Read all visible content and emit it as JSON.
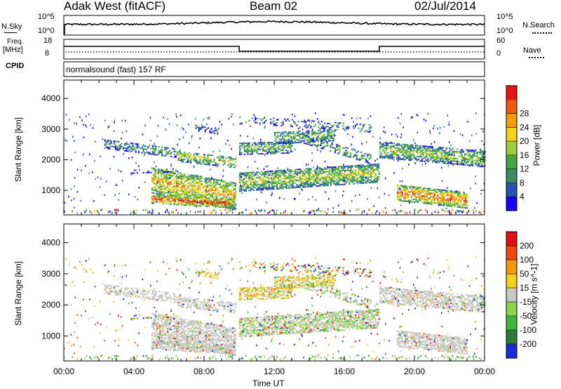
{
  "header": {
    "title_left": "Adak West (fitACF)",
    "title_mid": "Beam 02",
    "title_right": "02/Jul/2014"
  },
  "top_panels": {
    "nsky_label": "N.Sky",
    "nsky_ticks": [
      "10^5",
      "10^0"
    ],
    "nsearch_label": "N.Search",
    "nsearch_ticks": [
      "10^5",
      "10^0"
    ],
    "freq_label": "Freq.",
    "freq_unit": "[MHz]",
    "freq_ticks": [
      "18",
      "8"
    ],
    "nave_label": "Nave",
    "nave_ticks": [
      "60",
      "0"
    ],
    "cpid_label": "CPID",
    "cpid_text": "normalsound (fast) 157 RF"
  },
  "chart_data": {
    "type": "heatmap",
    "xlabel": "Time UT",
    "x_ticks": [
      "00:00",
      "04:00",
      "08:00",
      "12:00",
      "16:00",
      "20:00",
      "00:00"
    ],
    "ylabel": "Slant Range [km]",
    "y_ticks": [
      "1000",
      "2000",
      "3000",
      "4000"
    ],
    "ylim": [
      200,
      4600
    ],
    "xlim_hours": [
      0,
      24
    ],
    "panels": [
      {
        "name": "power",
        "colorbar_label": "Power [dB]",
        "colorbar_ticks": [
          "4",
          "8",
          "12",
          "16",
          "20",
          "24",
          "28"
        ],
        "colors": [
          "#1c00ff",
          "#2355b0",
          "#3f8a60",
          "#41a848",
          "#9ecf3a",
          "#f2d11a",
          "#f59a0e",
          "#ee5a10",
          "#e01a12"
        ]
      },
      {
        "name": "velocity",
        "colorbar_label": "Velocity [m s^-1]",
        "colorbar_ticks": [
          "200",
          "100",
          "50",
          "15",
          "-15",
          "-50",
          "-100",
          "-200"
        ],
        "colors": [
          "#1a2ad8",
          "#2b7a3a",
          "#3cb83c",
          "#8ad64a",
          "#c8c8c0",
          "#f2d11a",
          "#f59a0e",
          "#ee4a10",
          "#e01010"
        ]
      }
    ]
  }
}
